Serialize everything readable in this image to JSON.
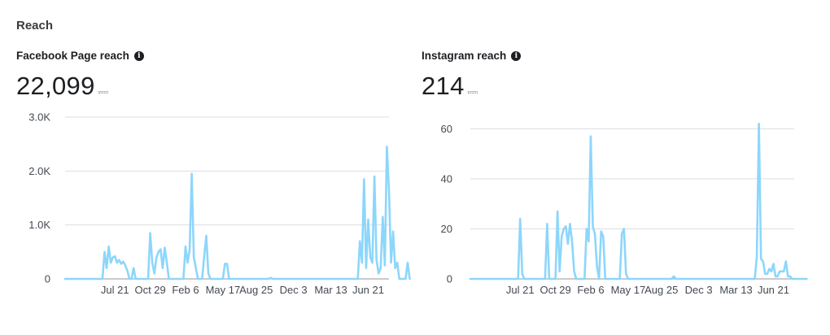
{
  "section_title": "Reach",
  "colors": {
    "line": "#8dd6fb",
    "grid": "#dadde1",
    "axis": "#90949c"
  },
  "chart_data": [
    {
      "type": "line",
      "title": "Facebook Page reach",
      "value": "22,099",
      "delta": "__",
      "ylim": [
        0,
        3000
      ],
      "y_ticks": [
        0,
        1000,
        2000,
        3000
      ],
      "y_tick_labels": [
        "0",
        "1.0K",
        "2.0K",
        "3.0K"
      ],
      "x_tick_labels": [
        "Jul 21",
        "Oct 29",
        "Feb 6",
        "May 17",
        "Aug 25",
        "Dec 3",
        "Mar 13",
        "Jun 21"
      ],
      "x_tick_index": [
        24,
        41,
        58,
        76,
        92,
        110,
        128,
        146
      ],
      "n_points": 157,
      "series": [
        {
          "values": [
            0,
            0,
            0,
            0,
            0,
            0,
            0,
            0,
            0,
            0,
            0,
            0,
            0,
            0,
            0,
            0,
            0,
            0,
            0,
            500,
            200,
            600,
            300,
            400,
            420,
            300,
            350,
            280,
            320,
            250,
            150,
            0,
            0,
            200,
            0,
            0,
            0,
            0,
            0,
            0,
            0,
            850,
            300,
            100,
            400,
            500,
            550,
            200,
            580,
            300,
            0,
            0,
            0,
            0,
            0,
            0,
            0,
            0,
            600,
            300,
            550,
            1950,
            400,
            200,
            0,
            0,
            0,
            420,
            800,
            100,
            0,
            0,
            0,
            0,
            0,
            0,
            0,
            280,
            280,
            0,
            0,
            0,
            0,
            0,
            0,
            0,
            0,
            0,
            0,
            0,
            0,
            0,
            0,
            0,
            0,
            0,
            0,
            0,
            0,
            20,
            0,
            0,
            0,
            0,
            0,
            0,
            0,
            0,
            0,
            0,
            0,
            0,
            0,
            0,
            0,
            0,
            0,
            0,
            0,
            0,
            0,
            0,
            0,
            0,
            0,
            0,
            0,
            0,
            0,
            0,
            0,
            0,
            0,
            0,
            0,
            0,
            0,
            0,
            0,
            0,
            0,
            0,
            700,
            300,
            1850,
            200,
            1100,
            400,
            300,
            1900,
            350,
            100,
            200,
            1150,
            250,
            2450,
            1650,
            300,
            880,
            200,
            300,
            0,
            0,
            0,
            0,
            300,
            0
          ]
        }
      ]
    },
    {
      "type": "line",
      "title": "Instagram reach",
      "value": "214",
      "delta": "__",
      "ylim": [
        0,
        65
      ],
      "y_ticks": [
        0,
        20,
        40,
        60
      ],
      "y_tick_labels": [
        "0",
        "20",
        "40",
        "60"
      ],
      "x_tick_labels": [
        "Jul 21",
        "Oct 29",
        "Feb 6",
        "May 17",
        "Aug 25",
        "Dec 3",
        "Mar 13",
        "Jun 21"
      ],
      "x_tick_index": [
        24,
        41,
        58,
        76,
        92,
        110,
        128,
        146
      ],
      "n_points": 157,
      "series": [
        {
          "values": [
            0,
            0,
            0,
            0,
            0,
            0,
            0,
            0,
            0,
            0,
            0,
            0,
            0,
            0,
            0,
            0,
            0,
            0,
            0,
            0,
            0,
            0,
            0,
            0,
            24,
            2,
            0,
            0,
            0,
            0,
            0,
            0,
            0,
            0,
            0,
            0,
            0,
            22,
            0,
            0,
            0,
            0,
            27,
            3,
            17,
            20,
            21,
            14,
            22,
            15,
            3,
            0,
            0,
            0,
            0,
            0,
            20,
            15,
            57,
            21,
            18,
            5,
            0,
            19,
            17,
            0,
            0,
            0,
            0,
            0,
            0,
            0,
            0,
            18,
            20,
            2,
            0,
            0,
            0,
            0,
            0,
            0,
            0,
            0,
            0,
            0,
            0,
            0,
            0,
            0,
            0,
            0,
            0,
            0,
            0,
            0,
            0,
            0,
            1,
            0,
            0,
            0,
            0,
            0,
            0,
            0,
            0,
            0,
            0,
            0,
            0,
            0,
            0,
            0,
            0,
            0,
            0,
            0,
            0,
            0,
            0,
            0,
            0,
            0,
            0,
            0,
            0,
            0,
            0,
            0,
            0,
            0,
            0,
            0,
            0,
            0,
            0,
            0,
            9,
            62,
            8,
            7,
            2,
            2,
            4,
            3,
            6,
            1,
            1,
            3,
            3,
            3,
            7,
            1,
            1,
            0,
            0,
            0,
            0,
            0,
            0,
            0,
            0
          ]
        }
      ]
    }
  ]
}
